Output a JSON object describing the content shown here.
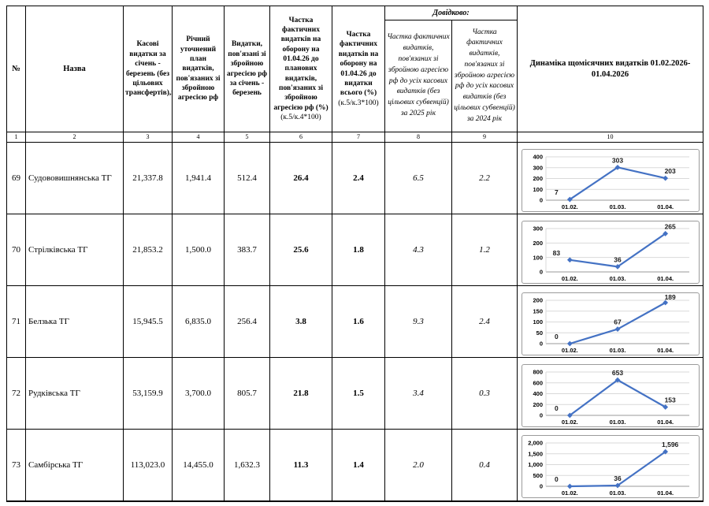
{
  "table": {
    "header": {
      "col1": "№",
      "col2": "Назва",
      "col3": "Касові видатки за січень - березень (без цільових трансфертів),всього",
      "col4": "Річний уточнений план видатків, пов'язаних зі збройною агресією рф",
      "col5": "Видатки, пов'язані зі збройною агресією рф за січень - березень",
      "col6_main": "Частка фактичних видатків на оборону на 01.04.26 до планових видатків, пов'язаних зі збройною агресією рф (%)",
      "col6_formula": "(к.5/к.4*100)",
      "col7_main": "Частка фактичних видатків на оборону на 01.04.26 до видатки всього (%)",
      "col7_formula": "(к.5/к.3*100)",
      "dovidkovo": "Довідково:",
      "col8": "Частка фактичних видатків, пов'язаних зі збройною агресією рф до усіх касових видатків (без цільових субвенцій) за 2025 рік",
      "col9": "Частка фактичних видатків, пов'язаних зі збройною агресією рф до усіх касових видатків (без цільових субвенцій) за 2024 рік",
      "col10": "Динаміка щомісячних видатків 01.02.2026-01.04.2026"
    },
    "numbering": [
      "1",
      "2",
      "3",
      "4",
      "5",
      "6",
      "7",
      "8",
      "9",
      "10"
    ],
    "rows": [
      {
        "num": "69",
        "name": "Судововишнянська ТГ",
        "cash": "21,337.8",
        "plan": "1,941.4",
        "expend": "512.4",
        "share_plan": "26.4",
        "share_total": "2.4",
        "ref2025": "6.5",
        "ref2024": "2.2"
      },
      {
        "num": "70",
        "name": "Стрілківська ТГ",
        "cash": "21,853.2",
        "plan": "1,500.0",
        "expend": "383.7",
        "share_plan": "25.6",
        "share_total": "1.8",
        "ref2025": "4.3",
        "ref2024": "1.2"
      },
      {
        "num": "71",
        "name": "Белзька ТГ",
        "cash": "15,945.5",
        "plan": "6,835.0",
        "expend": "256.4",
        "share_plan": "3.8",
        "share_total": "1.6",
        "ref2025": "9.3",
        "ref2024": "2.4"
      },
      {
        "num": "72",
        "name": "Рудківська ТГ",
        "cash": "53,159.9",
        "plan": "3,700.0",
        "expend": "805.7",
        "share_plan": "21.8",
        "share_total": "1.5",
        "ref2025": "3.4",
        "ref2024": "0.3"
      },
      {
        "num": "73",
        "name": "Самбірська ТГ",
        "cash": "113,023.0",
        "plan": "14,455.0",
        "expend": "1,632.3",
        "share_plan": "11.3",
        "share_total": "1.4",
        "ref2025": "2.0",
        "ref2024": "0.4"
      }
    ]
  },
  "chart_data": [
    {
      "type": "line",
      "title": "",
      "x": [
        "01.02.",
        "01.03.",
        "01.04."
      ],
      "values": [
        7,
        303,
        203
      ],
      "point_labels": [
        "7",
        "303",
        "203"
      ],
      "ylim": [
        0,
        400
      ],
      "yticks": [
        0,
        100,
        200,
        300,
        400
      ],
      "ytick_labels": [
        "0",
        "100",
        "200",
        "300",
        "400"
      ],
      "line_color": "#4472C4",
      "grid": true,
      "legend": "none"
    },
    {
      "type": "line",
      "title": "",
      "x": [
        "01.02.",
        "01.03.",
        "01.04."
      ],
      "values": [
        83,
        36,
        265
      ],
      "point_labels": [
        "83",
        "36",
        "265"
      ],
      "ylim": [
        0,
        300
      ],
      "yticks": [
        0,
        100,
        200,
        300
      ],
      "ytick_labels": [
        "0",
        "100",
        "200",
        "300"
      ],
      "line_color": "#4472C4",
      "grid": true,
      "legend": "none"
    },
    {
      "type": "line",
      "title": "",
      "x": [
        "01.02.",
        "01.03.",
        "01.04."
      ],
      "values": [
        0,
        67,
        189
      ],
      "point_labels": [
        "0",
        "67",
        "189"
      ],
      "ylim": [
        0,
        200
      ],
      "yticks": [
        0,
        50,
        100,
        150,
        200
      ],
      "ytick_labels": [
        "0",
        "50",
        "100",
        "150",
        "200"
      ],
      "line_color": "#4472C4",
      "grid": true,
      "legend": "none"
    },
    {
      "type": "line",
      "title": "",
      "x": [
        "01.02.",
        "01.03.",
        "01.04."
      ],
      "values": [
        0,
        653,
        153
      ],
      "point_labels": [
        "0",
        "653",
        "153"
      ],
      "ylim": [
        0,
        800
      ],
      "yticks": [
        0,
        200,
        400,
        600,
        800
      ],
      "ytick_labels": [
        "0",
        "200",
        "400",
        "600",
        "800"
      ],
      "line_color": "#4472C4",
      "grid": true,
      "legend": "none"
    },
    {
      "type": "line",
      "title": "",
      "x": [
        "01.02.",
        "01.03.",
        "01.04."
      ],
      "values": [
        0,
        36,
        1596
      ],
      "point_labels": [
        "0",
        "36",
        "1,596"
      ],
      "ylim": [
        0,
        2000
      ],
      "yticks": [
        0,
        500,
        1000,
        1500,
        2000
      ],
      "ytick_labels": [
        "0",
        "500",
        "1,000",
        "1,500",
        "2,000"
      ],
      "line_color": "#4472C4",
      "grid": true,
      "legend": "none"
    }
  ],
  "chart_colors": {
    "grid": "#d9d9d9",
    "axis": "#9a9a9a",
    "box_border": "#9b9b9b",
    "label": "#1a1a1a"
  }
}
